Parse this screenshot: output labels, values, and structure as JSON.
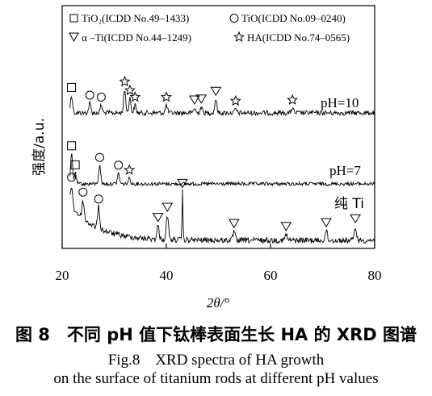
{
  "chart_data": {
    "type": "line",
    "xlabel": "2θ/°",
    "ylabel": "强度/a.u.",
    "xlim": [
      20,
      80
    ],
    "xticks": [
      "20",
      "40",
      "60",
      "80"
    ],
    "grid": false,
    "legend_placement": "top",
    "legend": [
      {
        "symbol": "square",
        "label": "TiO₂(ICDD No.49–1433)"
      },
      {
        "symbol": "circle",
        "label": "TiO(ICDD No.09–0240)"
      },
      {
        "symbol": "triangle",
        "label": "α –Ti(ICDD No.44–1249)"
      },
      {
        "symbol": "star",
        "label": "HA(ICDD No.74–0565)"
      }
    ],
    "series": [
      {
        "name": "pH=10",
        "peaks": [
          {
            "x": 21.8,
            "h": 1.8,
            "marker": "square"
          },
          {
            "x": 25.3,
            "h": 1.0,
            "marker": "circle"
          },
          {
            "x": 27.5,
            "h": 0.8,
            "marker": "circle"
          },
          {
            "x": 32.0,
            "h": 2.4,
            "marker": "star"
          },
          {
            "x": 33.0,
            "h": 1.5,
            "marker": "star"
          },
          {
            "x": 34.0,
            "h": 0.8,
            "marker": "star"
          },
          {
            "x": 40.0,
            "h": 0.8,
            "marker": "star"
          },
          {
            "x": 45.4,
            "h": 0.5,
            "marker": "triangle"
          },
          {
            "x": 46.7,
            "h": 0.6,
            "marker": "triangle"
          },
          {
            "x": 49.5,
            "h": 1.4,
            "marker": "triangle"
          },
          {
            "x": 53.3,
            "h": 0.4,
            "marker": "star"
          },
          {
            "x": 64.2,
            "h": 0.5,
            "marker": "star"
          }
        ]
      },
      {
        "name": "pH=7",
        "peaks": [
          {
            "x": 21.8,
            "h": 3.5,
            "marker": "square"
          },
          {
            "x": 22.5,
            "h": 1.3,
            "marker": "square"
          },
          {
            "x": 27.2,
            "h": 1.9,
            "marker": "circle"
          },
          {
            "x": 30.8,
            "h": 1.1,
            "marker": "circle"
          },
          {
            "x": 32.9,
            "h": 0.6,
            "marker": "star"
          }
        ]
      },
      {
        "name": "纯 Ti",
        "peaks": [
          {
            "x": 21.8,
            "h": 2.2,
            "marker": "circle"
          },
          {
            "x": 24.0,
            "h": 1.9,
            "marker": "circle"
          },
          {
            "x": 27.0,
            "h": 2.2,
            "marker": "circle"
          },
          {
            "x": 38.4,
            "h": 1.4,
            "marker": "triangle"
          },
          {
            "x": 40.2,
            "h": 2.5,
            "marker": "triangle"
          },
          {
            "x": 43.1,
            "h": 5.0,
            "marker": "triangle"
          },
          {
            "x": 53.0,
            "h": 0.9,
            "marker": "triangle"
          },
          {
            "x": 63.0,
            "h": 0.6,
            "marker": "triangle"
          },
          {
            "x": 70.7,
            "h": 1.0,
            "marker": "triangle"
          },
          {
            "x": 76.3,
            "h": 1.4,
            "marker": "triangle"
          }
        ]
      }
    ]
  },
  "caption": {
    "zh": "图 8　不同 pH 值下钛棒表面生长 HA 的 XRD 图谱",
    "en_line1": "Fig.8　XRD spectra of HA growth",
    "en_line2": "on the surface of titanium rods at different pH values"
  }
}
